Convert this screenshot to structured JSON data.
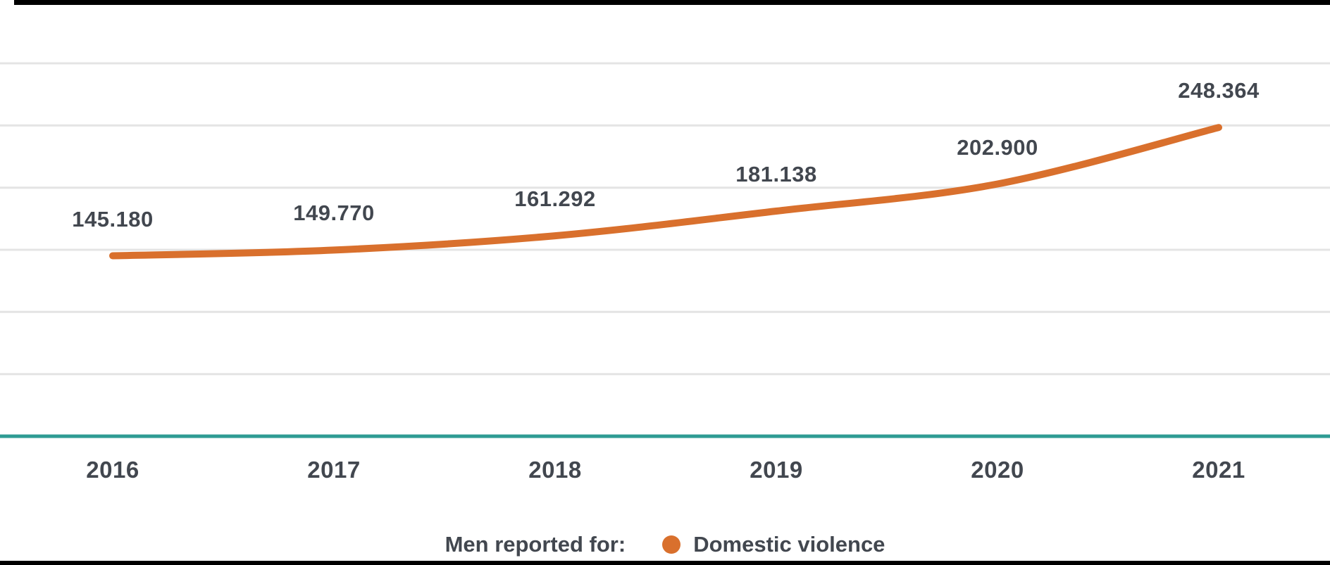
{
  "chart_data": {
    "type": "line",
    "title": "",
    "xlabel": "",
    "ylabel": "",
    "categories": [
      "2016",
      "2017",
      "2018",
      "2019",
      "2020",
      "2021"
    ],
    "series": [
      {
        "name": "Domestic violence",
        "values": [
          145180,
          149770,
          161292,
          181138,
          202900,
          248364
        ]
      }
    ],
    "point_labels": [
      "145.180",
      "149.770",
      "161.292",
      "181.138",
      "202.900",
      "248.364"
    ],
    "ylim": [
      0,
      300000
    ],
    "gridline_step": 50000,
    "grid": true,
    "legend_position": "bottom"
  },
  "legend": {
    "prefix": "Men reported for:",
    "item": "Domestic violence"
  },
  "colors": {
    "line": "#D9702D",
    "legend_dot": "#D9702D",
    "label_text": "#42474F",
    "gridline": "#E4E4E4",
    "zero_axis": "#2E9B93",
    "background": "#FFFFFF",
    "frame_bars": "#000000"
  }
}
